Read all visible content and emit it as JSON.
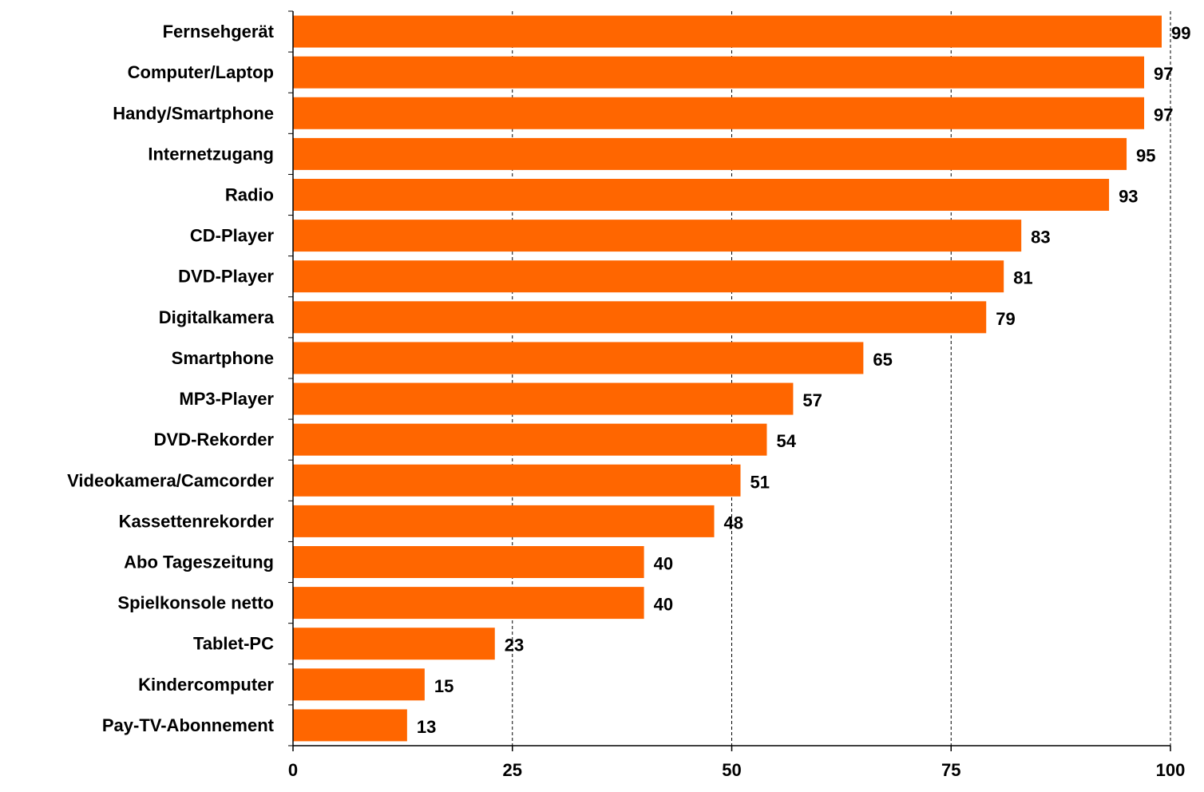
{
  "chart_data": {
    "type": "bar",
    "orientation": "horizontal",
    "categories": [
      "Fernsehgerät",
      "Computer/Laptop",
      "Handy/Smartphone",
      "Internetzugang",
      "Radio",
      "CD-Player",
      "DVD-Player",
      "Digitalkamera",
      "Smartphone",
      "MP3-Player",
      "DVD-Rekorder",
      "Videokamera/Camcorder",
      "Kassettenrekorder",
      "Abo Tageszeitung",
      "Spielkonsole netto",
      "Tablet-PC",
      "Kindercomputer",
      "Pay-TV-Abonnement"
    ],
    "values": [
      99,
      97,
      97,
      95,
      93,
      83,
      81,
      79,
      65,
      57,
      54,
      51,
      48,
      40,
      40,
      23,
      15,
      13
    ],
    "value_labels": [
      "99",
      "97",
      "97",
      "95",
      "93",
      "83",
      "81",
      "79",
      "65",
      "57",
      "54",
      "51",
      "48",
      "40",
      "40",
      "23",
      "15",
      "13"
    ],
    "xlim": [
      0,
      100
    ],
    "x_ticks": [
      0,
      25,
      50,
      75,
      100
    ],
    "x_tick_labels": [
      "0",
      "25",
      "50",
      "75",
      "100"
    ],
    "grid": "vertical dashed",
    "legend": "none",
    "colors": {
      "bar": "#ff6600",
      "text": "#000000",
      "axis": "#000000",
      "grid": "#000000"
    }
  }
}
